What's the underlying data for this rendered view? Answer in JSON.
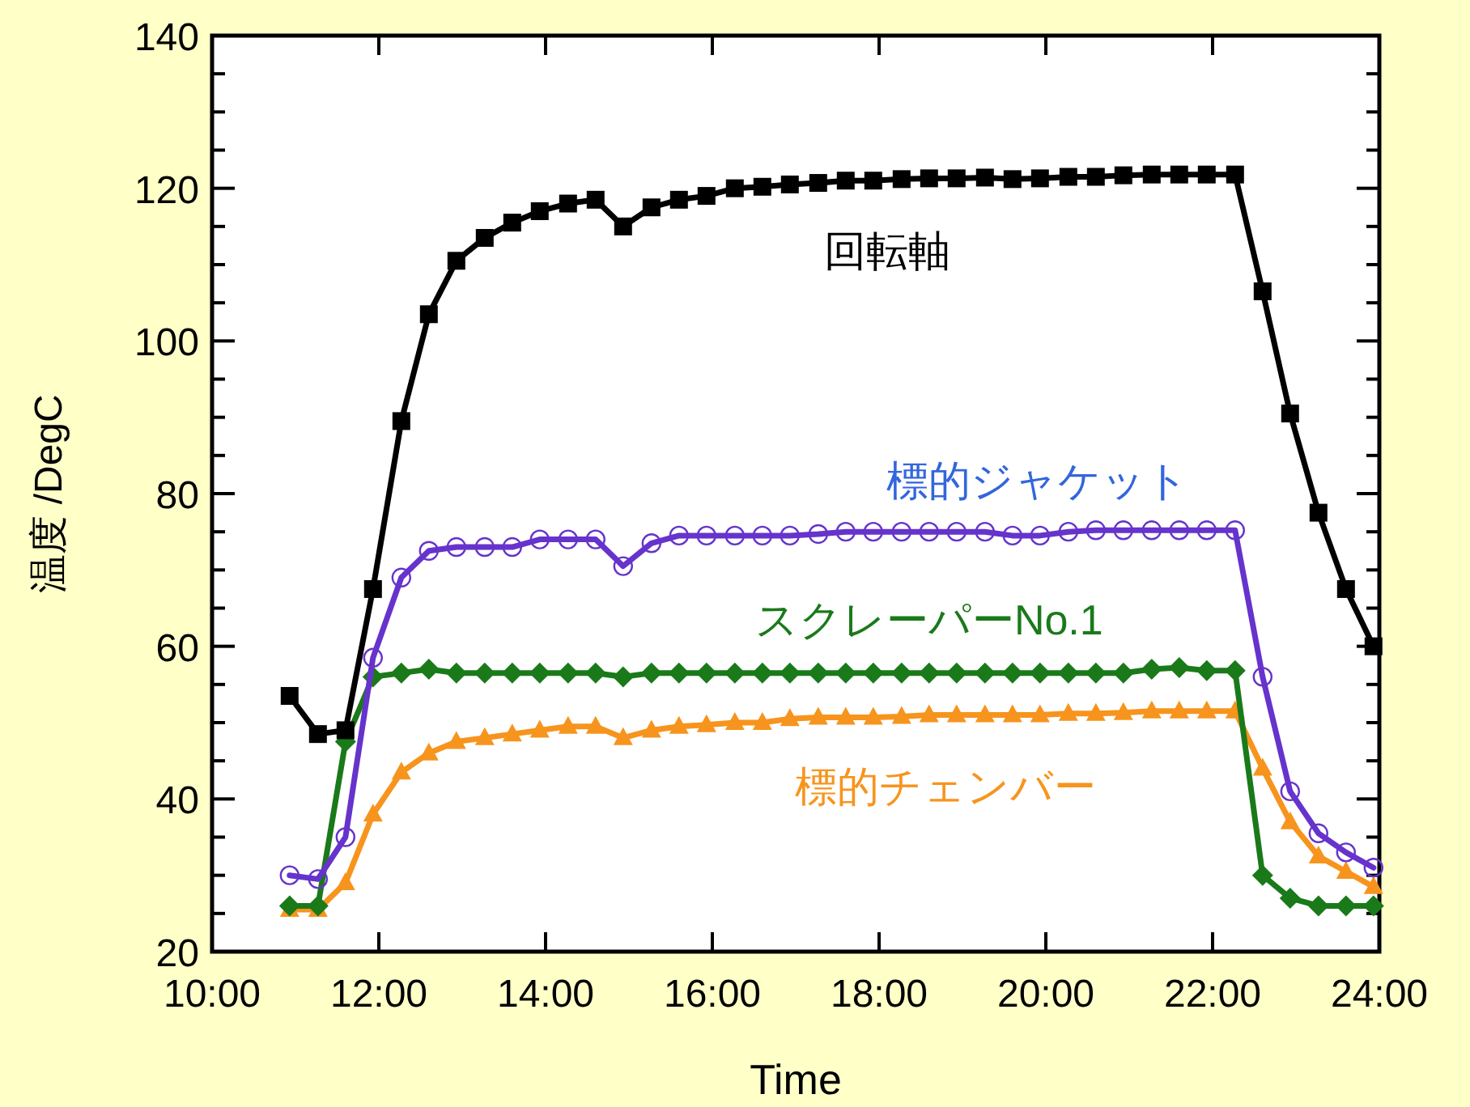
{
  "chart_data": {
    "type": "line",
    "xlabel": "Time",
    "ylabel": "温度 /DegC",
    "x": [
      10.93,
      11.27,
      11.6,
      11.93,
      12.27,
      12.6,
      12.93,
      13.27,
      13.6,
      13.93,
      14.27,
      14.6,
      14.93,
      15.27,
      15.6,
      15.93,
      16.27,
      16.6,
      16.93,
      17.27,
      17.6,
      17.93,
      18.27,
      18.6,
      18.93,
      19.27,
      19.6,
      19.93,
      20.27,
      20.6,
      20.93,
      21.27,
      21.6,
      21.93,
      22.27,
      22.6,
      22.93,
      23.27,
      23.6,
      23.93
    ],
    "xlim": [
      10,
      24
    ],
    "xticks": [
      {
        "value": 10,
        "label": "10:00"
      },
      {
        "value": 12,
        "label": "12:00"
      },
      {
        "value": 14,
        "label": "14:00"
      },
      {
        "value": 16,
        "label": "16:00"
      },
      {
        "value": 18,
        "label": "18:00"
      },
      {
        "value": 20,
        "label": "20:00"
      },
      {
        "value": 22,
        "label": "22:00"
      },
      {
        "value": 24,
        "label": "24:00"
      }
    ],
    "ylim": [
      20,
      140
    ],
    "yticks": [
      20,
      40,
      60,
      80,
      100,
      120,
      140
    ],
    "grid": false,
    "legend": false,
    "line_style": "solid",
    "series": [
      {
        "name": "回転軸",
        "color": "#000000",
        "marker": "square",
        "values": [
          53.5,
          48.5,
          49,
          67.5,
          89.5,
          103.5,
          110.5,
          113.5,
          115.5,
          117,
          118,
          118.5,
          115,
          117.5,
          118.5,
          119,
          120,
          120.2,
          120.5,
          120.7,
          121,
          121,
          121.2,
          121.3,
          121.3,
          121.4,
          121.2,
          121.3,
          121.5,
          121.5,
          121.7,
          121.8,
          121.8,
          121.8,
          121.8,
          106.5,
          90.5,
          77.5,
          67.5,
          60
        ]
      },
      {
        "name": "標的ジャケット",
        "color": "#6633cc",
        "marker": "circle",
        "values": [
          30,
          29.5,
          35,
          58.5,
          69,
          72.5,
          73,
          73,
          73,
          74,
          74,
          74,
          70.5,
          73.5,
          74.5,
          74.5,
          74.5,
          74.5,
          74.5,
          74.7,
          75,
          75,
          75,
          75,
          75,
          75,
          74.5,
          74.5,
          75,
          75.2,
          75.2,
          75.2,
          75.2,
          75.2,
          75.2,
          56,
          41,
          35.5,
          33,
          31
        ]
      },
      {
        "name": "スクレーパーNo.1",
        "color": "#1a7a1a",
        "marker": "diamond",
        "values": [
          26,
          26,
          47.5,
          56,
          56.5,
          57,
          56.5,
          56.5,
          56.5,
          56.5,
          56.5,
          56.5,
          56,
          56.5,
          56.5,
          56.5,
          56.5,
          56.5,
          56.5,
          56.5,
          56.5,
          56.5,
          56.5,
          56.5,
          56.5,
          56.5,
          56.5,
          56.5,
          56.5,
          56.5,
          56.5,
          57,
          57.2,
          56.8,
          56.8,
          30,
          27,
          26,
          26,
          26
        ]
      },
      {
        "name": "標的チェンバー",
        "color": "#f7941d",
        "marker": "triangle",
        "values": [
          25.5,
          25.5,
          29,
          38,
          43.5,
          46,
          47.5,
          48,
          48.5,
          49,
          49.5,
          49.5,
          48,
          49,
          49.5,
          49.7,
          50,
          50,
          50.5,
          50.7,
          50.7,
          50.7,
          50.8,
          51,
          51,
          51,
          51,
          51,
          51.2,
          51.2,
          51.3,
          51.5,
          51.5,
          51.5,
          51.5,
          44,
          37,
          32.5,
          30.5,
          28.5
        ]
      }
    ]
  }
}
